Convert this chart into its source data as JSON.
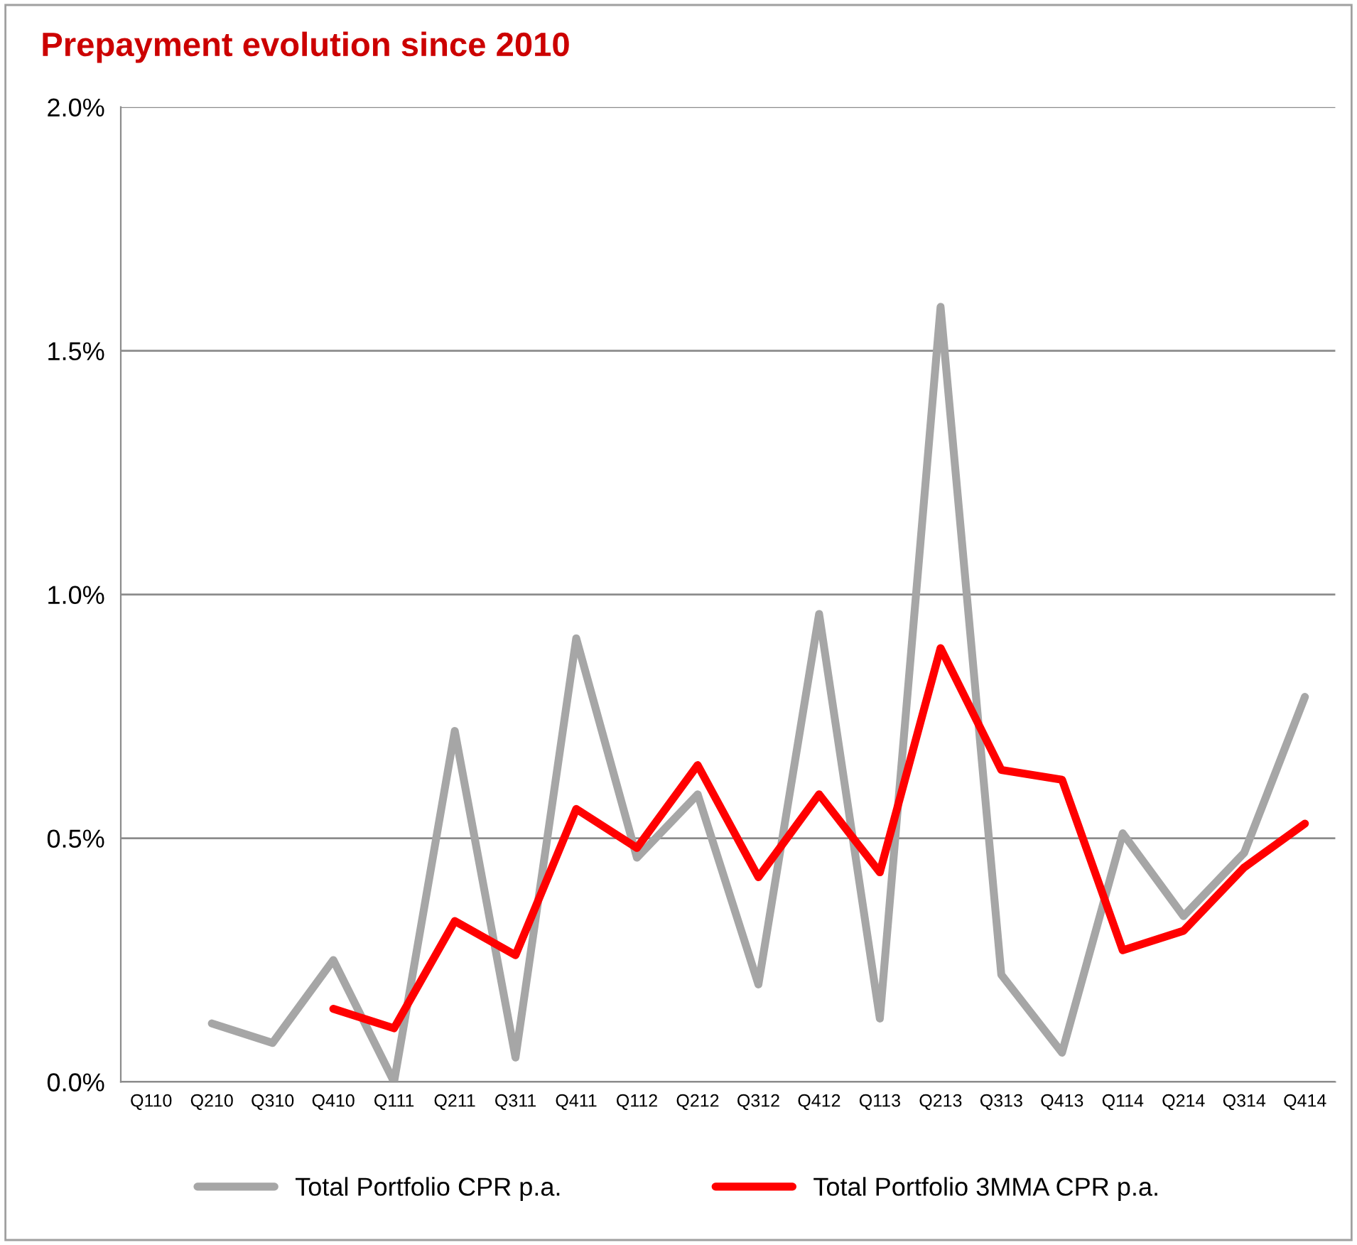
{
  "chart_data": {
    "type": "line",
    "title": "Prepayment evolution since 2010",
    "categories": [
      "Q110",
      "Q210",
      "Q310",
      "Q410",
      "Q111",
      "Q211",
      "Q311",
      "Q411",
      "Q112",
      "Q212",
      "Q312",
      "Q412",
      "Q113",
      "Q213",
      "Q313",
      "Q413",
      "Q114",
      "Q214",
      "Q314",
      "Q414"
    ],
    "series": [
      {
        "name": "Total Portfolio CPR p.a.",
        "color": "#a6a6a6",
        "values": [
          null,
          0.12,
          0.08,
          0.25,
          0.0,
          0.72,
          0.05,
          0.91,
          0.46,
          0.59,
          0.2,
          0.96,
          0.13,
          1.59,
          0.22,
          0.06,
          0.51,
          0.34,
          0.47,
          0.79
        ]
      },
      {
        "name": "Total Portfolio 3MMA CPR p.a.",
        "color": "#ff0000",
        "values": [
          null,
          null,
          null,
          0.15,
          0.11,
          0.33,
          0.26,
          0.56,
          0.48,
          0.65,
          0.42,
          0.59,
          0.43,
          0.89,
          0.64,
          0.62,
          0.27,
          0.31,
          0.44,
          0.53
        ]
      }
    ],
    "ylim": [
      0,
      2
    ],
    "yticks": [
      {
        "value": 0,
        "label": "0.0%"
      },
      {
        "value": 0.5,
        "label": "0.5%"
      },
      {
        "value": 1,
        "label": "1.0%"
      },
      {
        "value": 1.5,
        "label": "1.5%"
      },
      {
        "value": 2,
        "label": "2.0%"
      }
    ],
    "grid": "y",
    "legend": "bottom",
    "marker": "none",
    "line_style": "solid"
  }
}
